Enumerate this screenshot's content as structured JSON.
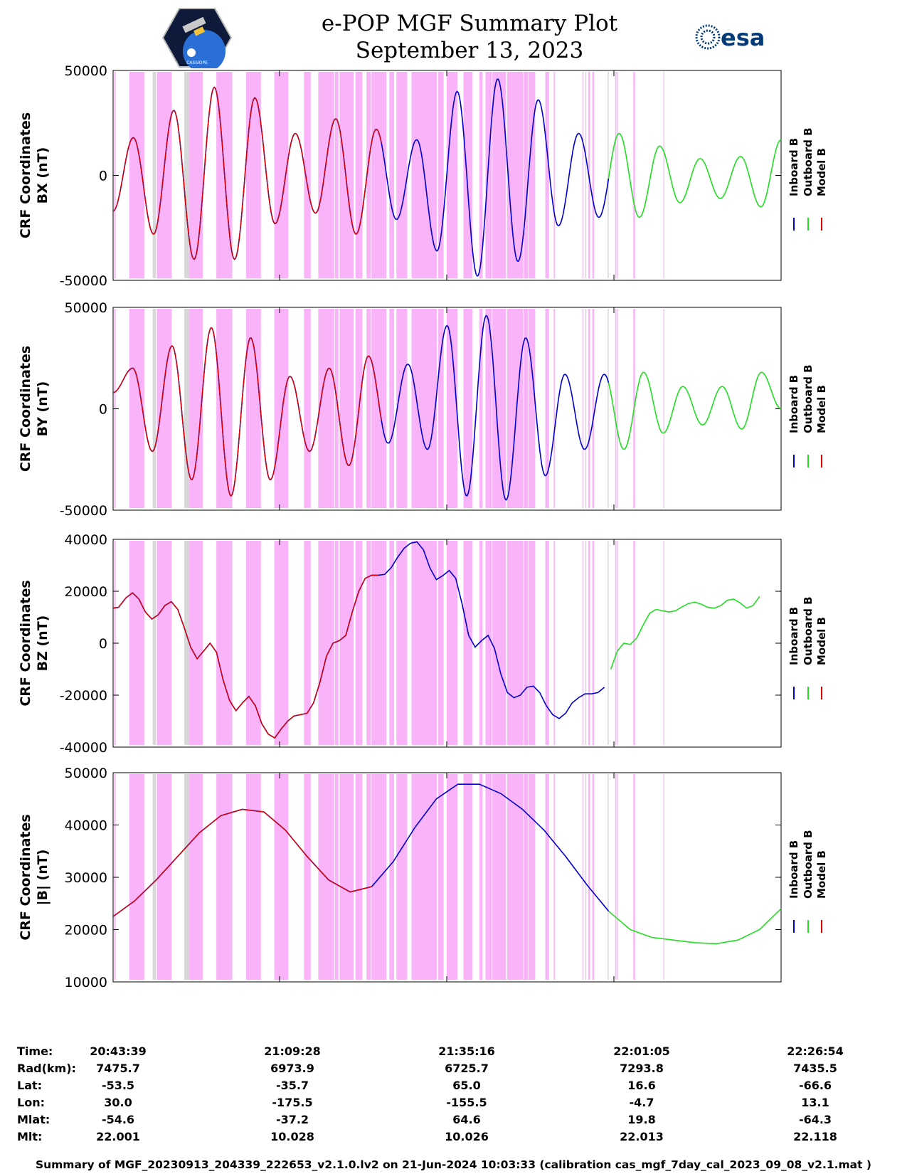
{
  "header": {
    "title_line1": "e-POP MGF Summary Plot",
    "title_line2": "September 13, 2023",
    "left_logo_text": "CASSIOPE",
    "right_logo_text": "esa"
  },
  "legend": [
    "Inboard B",
    "Outboard B",
    "Model B"
  ],
  "colors": {
    "inboard": "#0000cc",
    "outboard": "#22dd22",
    "model": "#dd0000",
    "shade_magenta": "#f9b4f9",
    "shade_gray": "#d8d8d8"
  },
  "time_ticks": [
    "20:43:39",
    "21:09:28",
    "21:35:16",
    "22:01:05",
    "22:26:54"
  ],
  "chart_data": [
    {
      "type": "line",
      "id": "bx",
      "ylabel_line1": "CRF Coordinates",
      "ylabel_line2": "BX (nT)",
      "ylim": [
        -50000,
        50000
      ],
      "yticks": [
        "50000",
        "0",
        "-50000"
      ],
      "ytick_values": [
        50000,
        0,
        -50000
      ],
      "series_extrema": [
        -17000,
        18000,
        -28000,
        31000,
        -40000,
        42000,
        -40000,
        37000,
        -23000,
        20000,
        -18000,
        27000,
        -28000,
        22000,
        -21000,
        17000,
        -36000,
        40000,
        -48000,
        46000,
        -41000,
        36000,
        -24000,
        20000,
        -20000,
        20000,
        -20000,
        14000,
        -13000,
        8000,
        -11000,
        9000,
        -15000,
        17000
      ]
    },
    {
      "type": "line",
      "id": "by",
      "ylabel_line1": "CRF Coordinates",
      "ylabel_line2": "BY (nT)",
      "ylim": [
        -50000,
        50000
      ],
      "yticks": [
        "50000",
        "0",
        "-50000"
      ],
      "ytick_values": [
        50000,
        0,
        -50000
      ],
      "series_extrema": [
        8000,
        20000,
        -21000,
        31000,
        -35000,
        40000,
        -43000,
        35000,
        -35000,
        16000,
        -21000,
        20000,
        -28000,
        26000,
        -17000,
        22000,
        -20000,
        41000,
        -43000,
        46000,
        -45000,
        35000,
        -33000,
        17000,
        -20000,
        17000,
        -20000,
        18000,
        -12000,
        11000,
        -8000,
        11000,
        -10000,
        18000,
        0
      ]
    },
    {
      "type": "line",
      "id": "bz",
      "ylabel_line1": "CRF Coordinates",
      "ylabel_line2": "BZ (nT)",
      "ylim": [
        -40000,
        40000
      ],
      "yticks": [
        "40000",
        "20000",
        "0",
        "-20000",
        "-40000"
      ],
      "ytick_values": [
        40000,
        20000,
        0,
        -20000,
        -40000
      ],
      "series_points": [
        [
          0,
          13500
        ],
        [
          2.5,
          13800
        ],
        [
          6,
          17500
        ],
        [
          9,
          19400
        ],
        [
          12,
          17000
        ],
        [
          15,
          12000
        ],
        [
          18,
          9300
        ],
        [
          21,
          11000
        ],
        [
          24,
          14500
        ],
        [
          27,
          16000
        ],
        [
          30,
          13000
        ],
        [
          33,
          6000
        ],
        [
          36,
          -1500
        ],
        [
          39,
          -6000
        ],
        [
          42,
          -3000
        ],
        [
          45,
          0
        ],
        [
          48,
          -3500
        ],
        [
          51,
          -14000
        ],
        [
          54,
          -22000
        ],
        [
          57,
          -26000
        ],
        [
          60,
          -23000
        ],
        [
          63,
          -20500
        ],
        [
          66,
          -24000
        ],
        [
          69,
          -31000
        ],
        [
          72,
          -35000
        ],
        [
          75,
          -36500
        ],
        [
          78,
          -33000
        ],
        [
          81,
          -30000
        ],
        [
          84,
          -28000
        ],
        [
          87,
          -27500
        ],
        [
          90,
          -27000
        ],
        [
          93,
          -23000
        ],
        [
          96,
          -15000
        ],
        [
          99,
          -5000
        ],
        [
          102,
          0
        ],
        [
          105,
          1000
        ],
        [
          108,
          3000
        ],
        [
          111,
          12000
        ],
        [
          114,
          20000
        ],
        [
          117,
          25000
        ],
        [
          120,
          26200
        ],
        [
          123,
          26200
        ],
        [
          126,
          26500
        ],
        [
          129,
          29000
        ],
        [
          132,
          33000
        ],
        [
          135,
          36500
        ],
        [
          138,
          38500
        ],
        [
          141,
          39000
        ],
        [
          144,
          36000
        ],
        [
          147,
          29000
        ],
        [
          150,
          24500
        ],
        [
          153,
          26000
        ],
        [
          156,
          28000
        ],
        [
          159,
          25000
        ],
        [
          162,
          15000
        ],
        [
          165,
          3000
        ],
        [
          168,
          -1500
        ],
        [
          171,
          1000
        ],
        [
          174,
          3000
        ],
        [
          177,
          -2000
        ],
        [
          180,
          -12000
        ],
        [
          183,
          -19000
        ],
        [
          186,
          -21000
        ],
        [
          189,
          -20000
        ],
        [
          192,
          -17000
        ],
        [
          195,
          -16500
        ],
        [
          198,
          -19000
        ],
        [
          201,
          -24000
        ],
        [
          204,
          -27500
        ],
        [
          207,
          -29000
        ],
        [
          210,
          -27000
        ],
        [
          213,
          -23000
        ],
        [
          216,
          -21000
        ],
        [
          219,
          -19500
        ],
        [
          222,
          -19500
        ],
        [
          225,
          -19000
        ],
        [
          228,
          -17000
        ],
        [
          231,
          -10000
        ],
        [
          234,
          -3000
        ],
        [
          237,
          0
        ],
        [
          240,
          -500
        ],
        [
          243,
          2000
        ],
        [
          246,
          7000
        ],
        [
          249,
          11500
        ],
        [
          252,
          13000
        ],
        [
          255,
          12500
        ],
        [
          258,
          12000
        ],
        [
          261,
          12500
        ],
        [
          264,
          14000
        ],
        [
          267,
          15300
        ],
        [
          270,
          15800
        ],
        [
          273,
          15000
        ],
        [
          276,
          13800
        ],
        [
          279,
          13500
        ],
        [
          282,
          14500
        ],
        [
          285,
          16500
        ],
        [
          288,
          17000
        ],
        [
          291,
          15500
        ],
        [
          294,
          13500
        ],
        [
          297,
          14500
        ],
        [
          300,
          18000
        ]
      ]
    },
    {
      "type": "line",
      "id": "babs",
      "ylabel_line1": "CRF Coordinates",
      "ylabel_line2": "|B| (nT)",
      "ylim": [
        10000,
        50000
      ],
      "yticks": [
        "50000",
        "40000",
        "30000",
        "20000",
        "10000"
      ],
      "ytick_values": [
        50000,
        40000,
        30000,
        20000,
        10000
      ],
      "series_points": [
        [
          0,
          22500
        ],
        [
          10,
          25500
        ],
        [
          20,
          29500
        ],
        [
          30,
          34000
        ],
        [
          40,
          38500
        ],
        [
          50,
          41800
        ],
        [
          60,
          43000
        ],
        [
          70,
          42500
        ],
        [
          80,
          39000
        ],
        [
          90,
          34000
        ],
        [
          100,
          29500
        ],
        [
          110,
          27200
        ],
        [
          120,
          28200
        ],
        [
          130,
          33000
        ],
        [
          140,
          39500
        ],
        [
          150,
          45000
        ],
        [
          160,
          47800
        ],
        [
          170,
          47800
        ],
        [
          180,
          46000
        ],
        [
          190,
          43000
        ],
        [
          200,
          39000
        ],
        [
          210,
          34000
        ],
        [
          220,
          28500
        ],
        [
          230,
          23500
        ],
        [
          240,
          20000
        ],
        [
          250,
          18500
        ],
        [
          260,
          18000
        ],
        [
          270,
          17500
        ],
        [
          280,
          17300
        ],
        [
          290,
          18000
        ],
        [
          300,
          20000
        ],
        [
          310,
          24000
        ]
      ]
    }
  ],
  "intervals_magenta": [
    [
      0.5,
      1.2
    ],
    [
      7.5,
      14.5
    ],
    [
      20.3,
      27.2
    ],
    [
      34.2,
      41.6
    ],
    [
      47.9,
      55.3
    ],
    [
      61.7,
      68.6
    ],
    [
      74.8,
      81.3
    ],
    [
      88.6,
      91.7
    ],
    [
      95.2,
      102.6
    ],
    [
      102.9,
      104.6
    ],
    [
      105.1,
      111.6
    ],
    [
      112.5,
      115.7
    ],
    [
      117.6,
      119.5
    ],
    [
      119.9,
      126.8
    ],
    [
      128.2,
      130.4
    ],
    [
      131.5,
      136.5
    ],
    [
      138.5,
      150.3
    ],
    [
      150.9,
      153.4
    ],
    [
      154.8,
      159.8
    ],
    [
      162.6,
      166.8
    ],
    [
      170.0,
      171.5
    ],
    [
      172.8,
      175.7
    ],
    [
      176.0,
      182.4
    ],
    [
      182.9,
      190.2
    ],
    [
      190.5,
      192.6
    ],
    [
      192.8,
      195.9
    ],
    [
      191.0,
      191.6
    ],
    [
      200.6,
      202.3
    ],
    [
      204.5,
      205.1
    ],
    [
      217.8,
      218.3
    ],
    [
      219.2,
      219.6
    ],
    [
      220.5,
      221.3
    ],
    [
      222.4,
      223.2
    ],
    [
      233.0,
      233.4
    ],
    [
      233.6,
      234.2
    ],
    [
      241.4,
      242.2
    ],
    [
      255.4,
      255.8
    ]
  ],
  "intervals_gray": [
    [
      18.4,
      19.9
    ],
    [
      33.0,
      35.4
    ],
    [
      229.5,
      230.0
    ]
  ],
  "series_segments": {
    "model_end": 125,
    "inboard_end": 230
  },
  "footer": {
    "row_labels": [
      "Time:",
      "Rad(km):",
      "Lat:",
      "Lon:",
      "Mlat:",
      "Mlt:"
    ],
    "columns": [
      [
        "20:43:39",
        "7475.7",
        "-53.5",
        "30.0",
        "-54.6",
        "22.001"
      ],
      [
        "21:09:28",
        "6973.9",
        "-35.7",
        "-175.5",
        "-37.2",
        "10.028"
      ],
      [
        "21:35:16",
        "6725.7",
        "65.0",
        "-155.5",
        "64.6",
        "10.026"
      ],
      [
        "22:01:05",
        "7293.8",
        "16.6",
        "-4.7",
        "19.8",
        "22.013"
      ],
      [
        "22:26:54",
        "7435.5",
        "-66.6",
        "13.1",
        "-64.3",
        "22.118"
      ]
    ],
    "note": "Summary of MGF_20230913_204339_222653_v2.1.0.lv2 on 21-Jun-2024 10:03:33 (calibration cas_mgf_7day_cal_2023_09_08_v2.1.mat )"
  }
}
